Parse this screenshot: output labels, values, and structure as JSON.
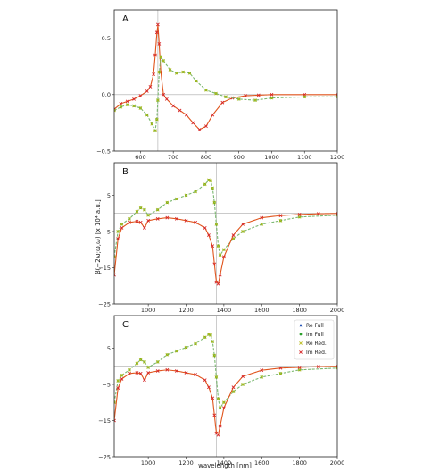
{
  "colors": {
    "re_full": "#1f4fb4",
    "im_full": "#2ca02c",
    "re_red": "#bcbd22",
    "im_red": "#d62728",
    "line_re": "#e0541c",
    "line_im": "#7ab870",
    "refline": "#aaaaaa"
  },
  "axis_labels": {
    "ylabel": "β(−2ω;ω,ω)  [x 10⁴ a.u.]",
    "xlabel": "wavelength  [nm]"
  },
  "legend": {
    "entries": [
      {
        "label": "Re Full",
        "marker": "star",
        "color_key": "re_full"
      },
      {
        "label": "Im Full",
        "marker": "circle",
        "color_key": "im_full"
      },
      {
        "label": "Re Red.",
        "marker": "x",
        "color_key": "re_red"
      },
      {
        "label": "Im Red.",
        "marker": "x",
        "color_key": "im_red"
      }
    ]
  },
  "chart_data": [
    {
      "type": "line",
      "panel": "A",
      "xlim": [
        520,
        1200
      ],
      "ylim": [
        -0.5,
        0.75
      ],
      "xticks": [
        600,
        700,
        800,
        900,
        1000,
        1100,
        1200
      ],
      "yticks": [
        0.5,
        0.0,
        -0.5
      ],
      "ytick_labels": [
        "0.5",
        "0.0",
        "−0.5"
      ],
      "vline": 653,
      "hline": 0,
      "series": [
        {
          "component": "imag",
          "x": [
            520,
            540,
            560,
            580,
            600,
            620,
            630,
            640,
            645,
            650,
            653,
            657,
            662,
            670,
            680,
            700,
            720,
            740,
            760,
            780,
            800,
            820,
            850,
            880,
            920,
            960,
            1000,
            1100,
            1200
          ],
          "values": [
            -0.13,
            -0.08,
            -0.06,
            -0.04,
            -0.01,
            0.03,
            0.07,
            0.18,
            0.35,
            0.55,
            0.62,
            0.45,
            0.2,
            0.0,
            -0.04,
            -0.1,
            -0.14,
            -0.18,
            -0.25,
            -0.31,
            -0.28,
            -0.18,
            -0.07,
            -0.03,
            -0.01,
            -0.005,
            0.0,
            0.0,
            0.0
          ]
        },
        {
          "component": "real",
          "x": [
            520,
            540,
            560,
            580,
            600,
            620,
            635,
            645,
            650,
            653,
            657,
            662,
            670,
            690,
            710,
            730,
            750,
            770,
            800,
            830,
            860,
            900,
            950,
            1000,
            1100,
            1200
          ],
          "values": [
            -0.14,
            -0.11,
            -0.09,
            -0.1,
            -0.12,
            -0.18,
            -0.26,
            -0.32,
            -0.22,
            -0.05,
            0.2,
            0.33,
            0.3,
            0.22,
            0.19,
            0.2,
            0.19,
            0.12,
            0.04,
            0.01,
            -0.02,
            -0.04,
            -0.05,
            -0.03,
            -0.02,
            -0.02
          ]
        }
      ]
    },
    {
      "type": "line",
      "panel": "B",
      "xlim": [
        820,
        2000
      ],
      "ylim": [
        -25,
        14
      ],
      "xticks": [
        1000,
        1200,
        1400,
        1600,
        1800,
        2000
      ],
      "yticks": [
        5,
        -5,
        -15,
        -25
      ],
      "ytick_labels": [
        "5",
        "−5",
        "−15",
        "−25"
      ],
      "vline": 1360,
      "hline": 0,
      "series": [
        {
          "component": "real",
          "x": [
            820,
            840,
            860,
            900,
            940,
            960,
            980,
            1000,
            1050,
            1100,
            1150,
            1200,
            1250,
            1300,
            1320,
            1330,
            1340,
            1350,
            1360,
            1370,
            1380,
            1400,
            1450,
            1500,
            1600,
            1700,
            1800,
            2000
          ],
          "values": [
            -12,
            -5,
            -3,
            -1.5,
            0.5,
            1.5,
            1,
            -0.5,
            1,
            3,
            4,
            5,
            6,
            8,
            9.2,
            9,
            7,
            3,
            -3,
            -9,
            -11.5,
            -10,
            -7,
            -5,
            -3,
            -2,
            -1,
            -0.5
          ]
        },
        {
          "component": "imag",
          "x": [
            820,
            840,
            860,
            900,
            940,
            960,
            980,
            1000,
            1050,
            1100,
            1150,
            1200,
            1250,
            1300,
            1320,
            1340,
            1350,
            1360,
            1370,
            1380,
            1400,
            1450,
            1500,
            1600,
            1700,
            1800,
            1900,
            2000
          ],
          "values": [
            -17,
            -7,
            -4,
            -2.5,
            -2.2,
            -2.5,
            -4,
            -2,
            -1.5,
            -1.2,
            -1.5,
            -2,
            -2.5,
            -4,
            -6,
            -9,
            -14,
            -19,
            -19.5,
            -17,
            -12,
            -6,
            -3,
            -1.2,
            -0.6,
            -0.3,
            -0.1,
            0
          ]
        }
      ]
    },
    {
      "type": "line",
      "panel": "C",
      "xlim": [
        820,
        2000
      ],
      "ylim": [
        -25,
        14
      ],
      "xticks": [
        1000,
        1200,
        1400,
        1600,
        1800,
        2000
      ],
      "yticks": [
        5,
        -5,
        -15,
        -25
      ],
      "ytick_labels": [
        "5",
        "−5",
        "−15",
        "−25"
      ],
      "vline": 1360,
      "hline": 0,
      "series": [
        {
          "component": "real",
          "x": [
            820,
            840,
            860,
            900,
            940,
            960,
            980,
            1000,
            1050,
            1100,
            1150,
            1200,
            1250,
            1300,
            1320,
            1330,
            1340,
            1350,
            1360,
            1370,
            1380,
            1400,
            1450,
            1500,
            1600,
            1700,
            1800,
            2000
          ],
          "values": [
            -10,
            -4,
            -2.5,
            -1,
            0.8,
            1.8,
            1.2,
            -0.3,
            1.2,
            3.2,
            4.2,
            5.2,
            6.2,
            8,
            8.8,
            8.6,
            6.8,
            3,
            -3,
            -9,
            -11.5,
            -10,
            -7,
            -5,
            -3,
            -2,
            -1,
            -0.5
          ]
        },
        {
          "component": "imag",
          "x": [
            820,
            840,
            860,
            900,
            940,
            960,
            980,
            1000,
            1050,
            1100,
            1150,
            1200,
            1250,
            1300,
            1320,
            1340,
            1350,
            1360,
            1370,
            1380,
            1400,
            1450,
            1500,
            1600,
            1700,
            1800,
            1900,
            2000
          ],
          "values": [
            -15,
            -6,
            -3.5,
            -2,
            -1.8,
            -2,
            -3.8,
            -1.8,
            -1.3,
            -1,
            -1.3,
            -1.8,
            -2.3,
            -3.8,
            -5.8,
            -8.8,
            -13.5,
            -18.5,
            -19,
            -16.5,
            -11.5,
            -5.8,
            -2.8,
            -1.1,
            -0.5,
            -0.3,
            -0.1,
            0
          ]
        }
      ]
    }
  ]
}
